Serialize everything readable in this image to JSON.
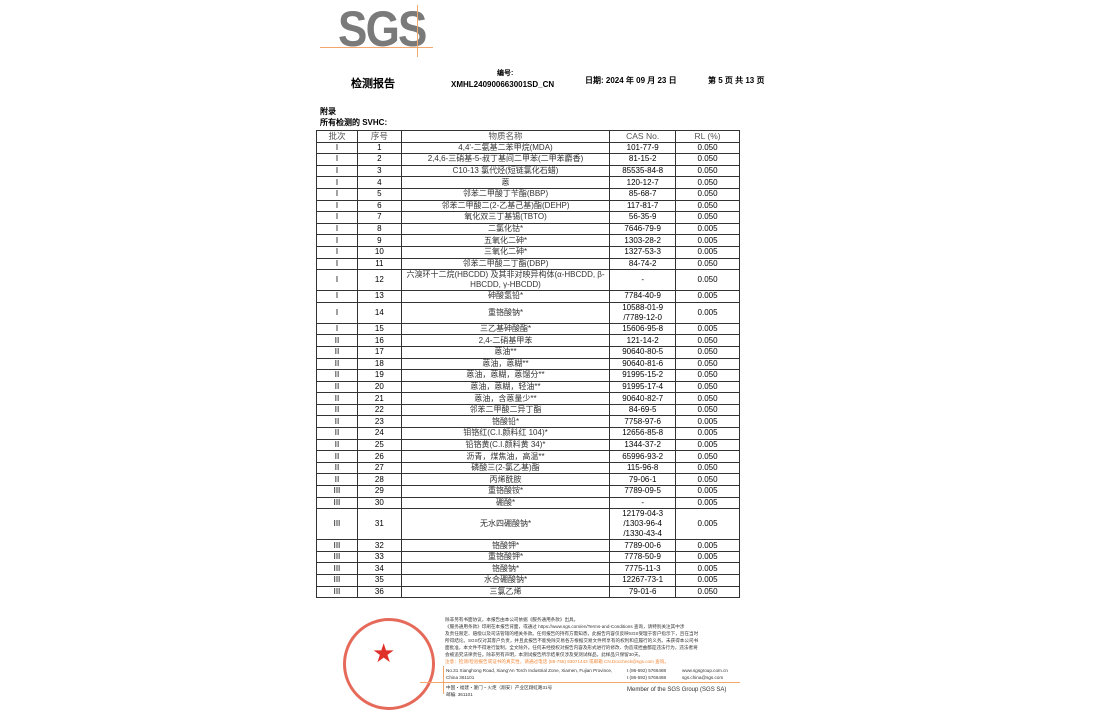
{
  "logo": "SGS",
  "header": {
    "title": "检测报告",
    "number_label": "编号:",
    "number": "XMHL240900663001SD_CN",
    "date": "日期: 2024 年 09 月 23 日",
    "page": "第 5 页 共 13 页"
  },
  "section": {
    "appendix": "附录",
    "subtitle": "所有检测的 SVHC:"
  },
  "table": {
    "headers": [
      "批次",
      "序号",
      "物质名称",
      "CAS No.",
      "RL (%)"
    ],
    "rows": [
      [
        "I",
        "1",
        "4,4'-二氨基二苯甲烷(MDA)",
        "101-77-9",
        "0.050"
      ],
      [
        "I",
        "2",
        "2,4,6-三硝基-5-叔丁基间二甲苯(二甲苯麝香)",
        "81-15-2",
        "0.050"
      ],
      [
        "I",
        "3",
        "C10-13 氯代烃(短链氯化石蜡)",
        "85535-84-8",
        "0.050"
      ],
      [
        "I",
        "4",
        "蒽",
        "120-12-7",
        "0.050"
      ],
      [
        "I",
        "5",
        "邻苯二甲酸丁苄酯(BBP)",
        "85-68-7",
        "0.050"
      ],
      [
        "I",
        "6",
        "邻苯二甲酸二(2-乙基己基)酯(DEHP)",
        "117-81-7",
        "0.050"
      ],
      [
        "I",
        "7",
        "氧化双三丁基锡(TBTO)",
        "56-35-9",
        "0.050"
      ],
      [
        "I",
        "8",
        "二氯化钴*",
        "7646-79-9",
        "0.005"
      ],
      [
        "I",
        "9",
        "五氧化二砷*",
        "1303-28-2",
        "0.005"
      ],
      [
        "I",
        "10",
        "三氧化二砷*",
        "1327-53-3",
        "0.005"
      ],
      [
        "I",
        "11",
        "邻苯二甲酸二丁酯(DBP)",
        "84-74-2",
        "0.050"
      ],
      [
        "I",
        "12",
        "六溴环十二烷(HBCDD) 及其非对映异构体(α-HBCDD, β-HBCDD, γ-HBCDD)",
        "-",
        "0.050"
      ],
      [
        "I",
        "13",
        "砷酸氢铅*",
        "7784-40-9",
        "0.005"
      ],
      [
        "I",
        "14",
        "重铬酸钠*",
        "10588-01-9 /7789-12-0",
        "0.005"
      ],
      [
        "I",
        "15",
        "三乙基砷酸酯*",
        "15606-95-8",
        "0.005"
      ],
      [
        "II",
        "16",
        "2,4-二硝基甲苯",
        "121-14-2",
        "0.050"
      ],
      [
        "II",
        "17",
        "蒽油**",
        "90640-80-5",
        "0.050"
      ],
      [
        "II",
        "18",
        "蒽油，蒽糊**",
        "90640-81-6",
        "0.050"
      ],
      [
        "II",
        "19",
        "蒽油，蒽糊，蒽馏分**",
        "91995-15-2",
        "0.050"
      ],
      [
        "II",
        "20",
        "蒽油，蒽糊，轻油**",
        "91995-17-4",
        "0.050"
      ],
      [
        "II",
        "21",
        "蒽油，含蒽量少**",
        "90640-82-7",
        "0.050"
      ],
      [
        "II",
        "22",
        "邻苯二甲酸二异丁酯",
        "84-69-5",
        "0.050"
      ],
      [
        "II",
        "23",
        "铬酸铅*",
        "7758-97-6",
        "0.005"
      ],
      [
        "II",
        "24",
        "钼铬红(C.I.颜料红 104)*",
        "12656-85-8",
        "0.005"
      ],
      [
        "II",
        "25",
        "铅铬黄(C.I.颜料黄 34)*",
        "1344-37-2",
        "0.005"
      ],
      [
        "II",
        "26",
        "沥青，煤焦油，高温**",
        "65996-93-2",
        "0.050"
      ],
      [
        "II",
        "27",
        "磷酸三(2-氯乙基)酯",
        "115-96-8",
        "0.050"
      ],
      [
        "II",
        "28",
        "丙烯酰胺",
        "79-06-1",
        "0.050"
      ],
      [
        "III",
        "29",
        "重铬酸铵*",
        "7789-09-5",
        "0.005"
      ],
      [
        "III",
        "30",
        "硼酸*",
        "-",
        "0.005"
      ],
      [
        "III",
        "31",
        "无水四硼酸钠*",
        "12179-04-3 /1303-96-4 /1330-43-4",
        "0.005"
      ],
      [
        "III",
        "32",
        "铬酸钾*",
        "7789-00-6",
        "0.005"
      ],
      [
        "III",
        "33",
        "重铬酸钾*",
        "7778-50-9",
        "0.005"
      ],
      [
        "III",
        "34",
        "铬酸钠*",
        "7775-11-3",
        "0.005"
      ],
      [
        "III",
        "35",
        "水合硼酸钠*",
        "12267-73-1",
        "0.005"
      ],
      [
        "III",
        "36",
        "三氯乙烯",
        "79-01-6",
        "0.050"
      ]
    ]
  },
  "footer": {
    "lines": [
      "除非另有书面协议，本报告由本公司依据《服务通用条款》出具。",
      "《服务通用条款》印刷在本报告背面，或通过 https://www.sgs.com/en/Terms-and-Conditions 查询，请特别关注其中涉",
      "及责任限定、赔偿以及司法管辖的相关条款。任何报告的持有方需知悉，此报告内容仅反映SGS受理于客户指示下，且在当时",
      "所得结论。SGS仅对其客户负责，并且此报告不能免除交易各方根据交易文件所享有的权利和应履行的义务。未获得本公司书",
      "面批准，本文件不得进行复制，全文除外。任何未经授权对报告内容及形式进行的修改、伪造或捏曲都是违法行为，违法者将",
      "会被追究法律责任。除非另有声明，本测试报告所示结果仅涉及受测试样品，此样品只保留30天。"
    ],
    "warning": "注意：检测/检验报告或证书的真实性，请通过电话 (86-755) 83071443 或邮箱 CN.Doccheck@sgs.com 查询。",
    "address_en": "No.31 Xianghong Road, Xiang'An Torch Industrial Zone, Xiamen, Fujian Province, China  361101",
    "address_cn": "中国・福建・厦门・火炬（翔安）产业区翔虹路31号",
    "postcode": "邮编: 361101",
    "phone1": "t (86-592) 5766488",
    "phone2": "t (86-592) 5766488",
    "web": "www.sgsgroup.com.cn",
    "email": "sgs.china@sgs.com",
    "member": "Member of the SGS Group (SGS SA)"
  },
  "colors": {
    "accent": "#f2a76b",
    "logo": "#7a7a7a",
    "seal": "#e0302a"
  }
}
